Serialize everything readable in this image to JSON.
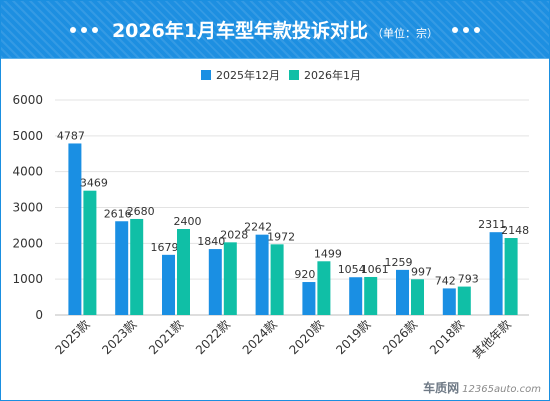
{
  "header": {
    "title": "2026年1月车型年款投诉对比",
    "unit": "（单位：宗）"
  },
  "watermark": {
    "brand": "车质网",
    "domain": "12365auto.com"
  },
  "colors": {
    "header_bg": "#1d8fe1",
    "series_2025_12": "#1a8fe3",
    "series_2026_01": "#10bfa6"
  },
  "chart_data": {
    "type": "bar",
    "categories": [
      "2025款",
      "2023款",
      "2021款",
      "2022款",
      "2024款",
      "2020款",
      "2019款",
      "2026款",
      "2018款",
      "其他年款"
    ],
    "series": [
      {
        "name": "2025年12月",
        "values": [
          4787,
          2616,
          1679,
          1840,
          2242,
          920,
          1054,
          1259,
          742,
          2311
        ]
      },
      {
        "name": "2026年1月",
        "values": [
          3469,
          2680,
          2400,
          2028,
          1972,
          1499,
          1061,
          997,
          793,
          2148
        ]
      }
    ],
    "ylim": [
      0,
      6000
    ],
    "yticks": [
      0,
      1000,
      2000,
      3000,
      4000,
      5000,
      6000
    ],
    "grid": true,
    "legend_position": "top",
    "xlabel": "",
    "ylabel": ""
  }
}
